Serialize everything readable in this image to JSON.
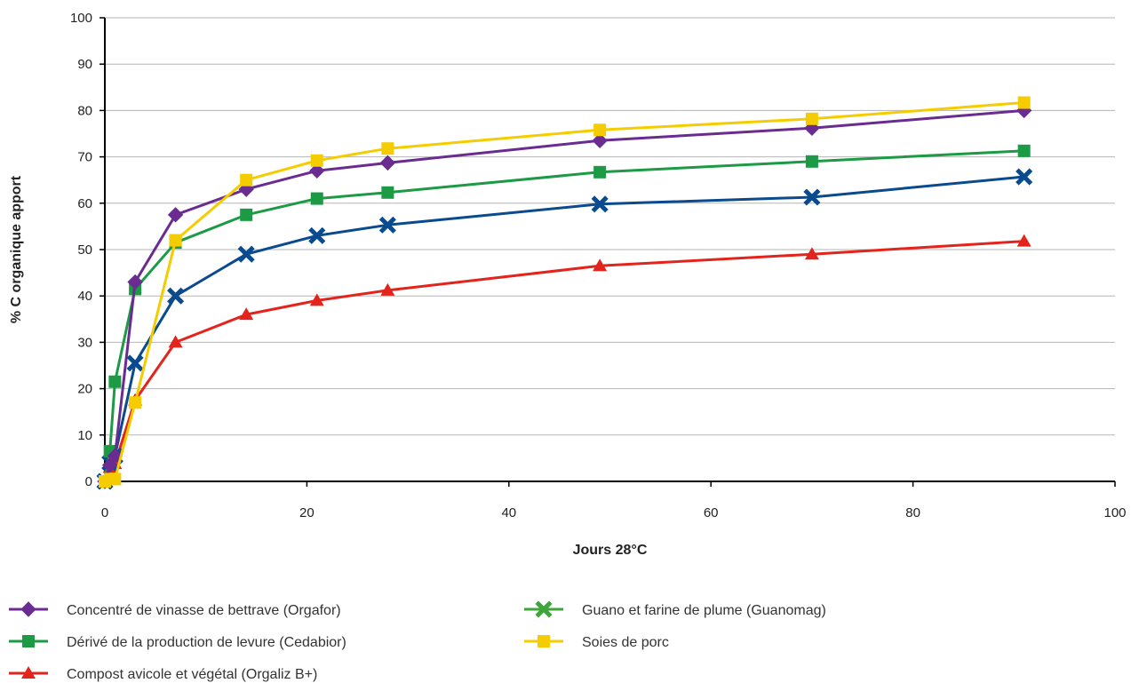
{
  "chart_data": {
    "type": "line",
    "xlabel": "Jours 28°C",
    "ylabel": "% C organique apport",
    "xlim": [
      0,
      100
    ],
    "ylim": [
      0,
      100
    ],
    "xticks": [
      0,
      20,
      40,
      60,
      80,
      100
    ],
    "yticks": [
      0,
      10,
      20,
      30,
      40,
      50,
      60,
      70,
      80,
      90,
      100
    ],
    "grid": "horizontal",
    "legend_position": "bottom",
    "series": [
      {
        "name": "Concentré de vinasse de bettrave (Orgafor)",
        "color": "#6a2c91",
        "marker": "diamond",
        "x": [
          0,
          0.5,
          1,
          3,
          7,
          14,
          21,
          28,
          49,
          70,
          91
        ],
        "y": [
          0,
          3.5,
          5.5,
          43,
          57.5,
          63,
          67,
          68.7,
          73.5,
          76.2,
          80
        ]
      },
      {
        "name": "Guano et farine de plume (Guanomag)",
        "color": "#0a4a8f",
        "legend_color": "#3da53a",
        "marker": "x",
        "x": [
          0,
          0.5,
          1,
          3,
          7,
          14,
          21,
          28,
          49,
          70,
          91
        ],
        "y": [
          0,
          4,
          5.5,
          25.5,
          40,
          49,
          53,
          55.3,
          59.8,
          61.3,
          65.7
        ]
      },
      {
        "name": "Dérivé de la production de levure (Cedabior)",
        "color": "#1c9a46",
        "marker": "square",
        "x": [
          0,
          0.5,
          1,
          3,
          7,
          14,
          21,
          28,
          49,
          70,
          91
        ],
        "y": [
          0,
          6.5,
          21.5,
          41.5,
          51.5,
          57.5,
          61,
          62.3,
          66.7,
          69,
          71.3
        ]
      },
      {
        "name": "Soies de porc",
        "color": "#f5cc00",
        "marker": "square",
        "x": [
          0,
          0.5,
          1,
          3,
          7,
          14,
          21,
          28,
          49,
          70,
          91
        ],
        "y": [
          0,
          0.5,
          0.5,
          17,
          52,
          65,
          69.2,
          71.8,
          75.8,
          78.2,
          81.7
        ]
      },
      {
        "name": "Compost avicole et végétal (Orgaliz B+)",
        "color": "#e3241c",
        "marker": "triangle",
        "x": [
          0,
          0.5,
          1,
          3,
          7,
          14,
          21,
          28,
          49,
          70,
          91
        ],
        "y": [
          0,
          3,
          3.8,
          17.5,
          30,
          36,
          39,
          41.2,
          46.5,
          49,
          51.8
        ]
      }
    ],
    "legend_order": [
      "Concentré de vinasse de bettrave (Orgafor)",
      "Guano et farine de plume (Guanomag)",
      "Dérivé de la production de levure (Cedabior)",
      "Soies de porc",
      "Compost avicole et végétal (Orgaliz B+)"
    ]
  }
}
